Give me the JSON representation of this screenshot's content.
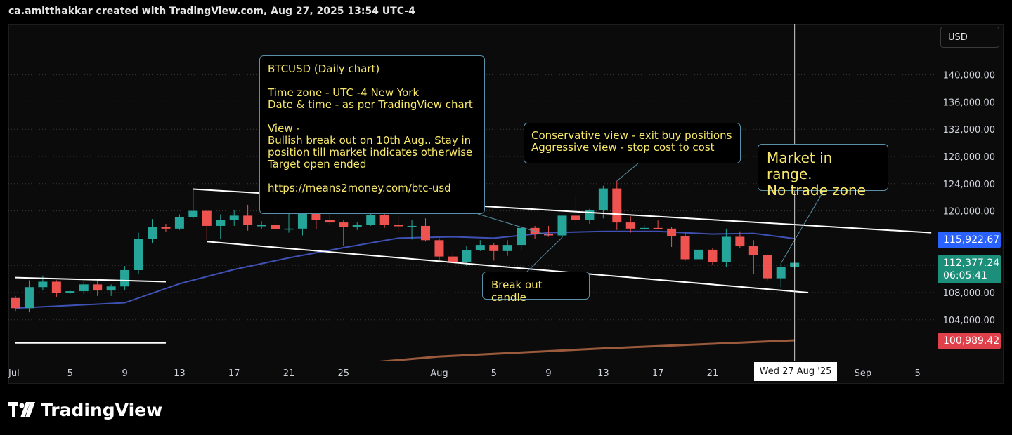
{
  "header": {
    "text": "ca.amitthakkar created with TradingView.com, Aug 27, 2025 13:54 UTC-4"
  },
  "currency_button": "USD",
  "notes": {
    "main": "BTCUSD (Daily chart)\n\nTime zone - UTC -4 New York\nDate & time - as per TradingView chart\n\nView -\nBullish break out on 10th Aug.. Stay in\nposition till market indicates otherwise\nTarget open ended\n\nhttps://means2money.com/btc-usd",
    "break_out": "Break out candle",
    "conservative": "Conservative view - exit buy positions\nAggressive view - stop cost to cost",
    "range": "Market in range.\nNo trade zone"
  },
  "price_tags": {
    "ma": "115,922.67",
    "last": "112,377.24",
    "countdown": "06:05:41",
    "lower": "100,989.42"
  },
  "crosshair_date": "Wed 27 Aug '25",
  "brand": "TradingView",
  "colors": {
    "up": "#26a69a",
    "down": "#ef5350",
    "ma": "#3f51b5",
    "trendline": "#ffffff",
    "note_text": "#f7e86a",
    "note_border": "#5a8fa8"
  },
  "chart_data": {
    "type": "candlestick",
    "title": "",
    "symbol": "BTCUSD",
    "timeframe": "Daily",
    "y_ticks": [
      104000,
      108000,
      112000,
      120000,
      124000,
      128000,
      132000,
      136000,
      140000
    ],
    "y_tick_labels": [
      "104,000.00",
      "108,000.00",
      "",
      "120,000.00",
      "124,000.00",
      "128,000.00",
      "132,000.00",
      "136,000.00",
      "140,000.00"
    ],
    "ylim": [
      96000,
      144000
    ],
    "x_ticks": [
      {
        "label": "Jul",
        "date": "2025-07-01"
      },
      {
        "label": "5",
        "date": "2025-07-05"
      },
      {
        "label": "9",
        "date": "2025-07-09"
      },
      {
        "label": "13",
        "date": "2025-07-13"
      },
      {
        "label": "17",
        "date": "2025-07-17"
      },
      {
        "label": "21",
        "date": "2025-07-21"
      },
      {
        "label": "25",
        "date": "2025-07-25"
      },
      {
        "label": "Aug",
        "date": "2025-08-01"
      },
      {
        "label": "5",
        "date": "2025-08-05"
      },
      {
        "label": "9",
        "date": "2025-08-09"
      },
      {
        "label": "13",
        "date": "2025-08-13"
      },
      {
        "label": "17",
        "date": "2025-08-17"
      },
      {
        "label": "21",
        "date": "2025-08-21"
      },
      {
        "label": "Sep",
        "date": "2025-09-01"
      },
      {
        "label": "5",
        "date": "2025-09-05"
      }
    ],
    "candles": [
      {
        "date": "2025-07-01",
        "o": 107200,
        "h": 107500,
        "l": 105300,
        "c": 105700
      },
      {
        "date": "2025-07-02",
        "o": 105700,
        "h": 109800,
        "l": 105100,
        "c": 108800
      },
      {
        "date": "2025-07-03",
        "o": 108800,
        "h": 110500,
        "l": 108300,
        "c": 109600
      },
      {
        "date": "2025-07-04",
        "o": 109600,
        "h": 109800,
        "l": 107300,
        "c": 108000
      },
      {
        "date": "2025-07-05",
        "o": 108000,
        "h": 108400,
        "l": 107800,
        "c": 108200
      },
      {
        "date": "2025-07-06",
        "o": 108200,
        "h": 109700,
        "l": 107800,
        "c": 109200
      },
      {
        "date": "2025-07-07",
        "o": 109200,
        "h": 109700,
        "l": 107500,
        "c": 108300
      },
      {
        "date": "2025-07-08",
        "o": 108300,
        "h": 109200,
        "l": 107500,
        "c": 108900
      },
      {
        "date": "2025-07-09",
        "o": 108900,
        "h": 111900,
        "l": 108300,
        "c": 111300
      },
      {
        "date": "2025-07-10",
        "o": 111300,
        "h": 116800,
        "l": 110700,
        "c": 115900
      },
      {
        "date": "2025-07-11",
        "o": 115900,
        "h": 118800,
        "l": 115300,
        "c": 117600
      },
      {
        "date": "2025-07-12",
        "o": 117600,
        "h": 118100,
        "l": 116900,
        "c": 117400
      },
      {
        "date": "2025-07-13",
        "o": 117400,
        "h": 119500,
        "l": 117200,
        "c": 119100
      },
      {
        "date": "2025-07-14",
        "o": 119100,
        "h": 123200,
        "l": 118900,
        "c": 120000
      },
      {
        "date": "2025-07-15",
        "o": 120000,
        "h": 120200,
        "l": 115700,
        "c": 117800
      },
      {
        "date": "2025-07-16",
        "o": 117800,
        "h": 119500,
        "l": 115900,
        "c": 118700
      },
      {
        "date": "2025-07-17",
        "o": 118700,
        "h": 120100,
        "l": 117800,
        "c": 119300
      },
      {
        "date": "2025-07-18",
        "o": 119300,
        "h": 120900,
        "l": 117100,
        "c": 117900
      },
      {
        "date": "2025-07-19",
        "o": 117900,
        "h": 118500,
        "l": 117300,
        "c": 117900
      },
      {
        "date": "2025-07-20",
        "o": 117900,
        "h": 119000,
        "l": 116500,
        "c": 117300
      },
      {
        "date": "2025-07-21",
        "o": 117300,
        "h": 119700,
        "l": 116800,
        "c": 117400
      },
      {
        "date": "2025-07-22",
        "o": 117400,
        "h": 120200,
        "l": 116400,
        "c": 119900
      },
      {
        "date": "2025-07-23",
        "o": 119900,
        "h": 120100,
        "l": 117300,
        "c": 118700
      },
      {
        "date": "2025-07-24",
        "o": 118700,
        "h": 119600,
        "l": 117900,
        "c": 118300
      },
      {
        "date": "2025-07-25",
        "o": 118300,
        "h": 118600,
        "l": 114800,
        "c": 117600
      },
      {
        "date": "2025-07-26",
        "o": 117600,
        "h": 118300,
        "l": 117200,
        "c": 117900
      },
      {
        "date": "2025-07-27",
        "o": 117900,
        "h": 119800,
        "l": 117800,
        "c": 119400
      },
      {
        "date": "2025-07-28",
        "o": 119400,
        "h": 119800,
        "l": 117500,
        "c": 117900
      },
      {
        "date": "2025-07-29",
        "o": 117900,
        "h": 119200,
        "l": 116900,
        "c": 117800
      },
      {
        "date": "2025-07-30",
        "o": 117800,
        "h": 118700,
        "l": 115800,
        "c": 117800
      },
      {
        "date": "2025-07-31",
        "o": 117800,
        "h": 118900,
        "l": 115500,
        "c": 115700
      },
      {
        "date": "2025-08-01",
        "o": 115700,
        "h": 116000,
        "l": 112700,
        "c": 113300
      },
      {
        "date": "2025-08-02",
        "o": 113300,
        "h": 114000,
        "l": 112000,
        "c": 112500
      },
      {
        "date": "2025-08-03",
        "o": 112500,
        "h": 114800,
        "l": 111900,
        "c": 114200
      },
      {
        "date": "2025-08-04",
        "o": 114200,
        "h": 115700,
        "l": 114100,
        "c": 115000
      },
      {
        "date": "2025-08-05",
        "o": 115000,
        "h": 115300,
        "l": 112700,
        "c": 114100
      },
      {
        "date": "2025-08-06",
        "o": 114100,
        "h": 115700,
        "l": 113400,
        "c": 115000
      },
      {
        "date": "2025-08-07",
        "o": 115000,
        "h": 117600,
        "l": 114300,
        "c": 117500
      },
      {
        "date": "2025-08-08",
        "o": 117500,
        "h": 117800,
        "l": 115900,
        "c": 116600
      },
      {
        "date": "2025-08-09",
        "o": 116600,
        "h": 117800,
        "l": 116200,
        "c": 116400
      },
      {
        "date": "2025-08-10",
        "o": 116400,
        "h": 119300,
        "l": 116100,
        "c": 119300
      },
      {
        "date": "2025-08-11",
        "o": 119300,
        "h": 122300,
        "l": 118100,
        "c": 118700
      },
      {
        "date": "2025-08-12",
        "o": 118700,
        "h": 120300,
        "l": 118100,
        "c": 120100
      },
      {
        "date": "2025-08-13",
        "o": 120100,
        "h": 123700,
        "l": 118900,
        "c": 123300
      },
      {
        "date": "2025-08-14",
        "o": 123300,
        "h": 124400,
        "l": 117200,
        "c": 118300
      },
      {
        "date": "2025-08-15",
        "o": 118300,
        "h": 119200,
        "l": 116800,
        "c": 117400
      },
      {
        "date": "2025-08-16",
        "o": 117400,
        "h": 117900,
        "l": 117200,
        "c": 117500
      },
      {
        "date": "2025-08-17",
        "o": 117500,
        "h": 118600,
        "l": 117300,
        "c": 117400
      },
      {
        "date": "2025-08-18",
        "o": 117400,
        "h": 117600,
        "l": 114700,
        "c": 116300
      },
      {
        "date": "2025-08-19",
        "o": 116300,
        "h": 116800,
        "l": 112700,
        "c": 112900
      },
      {
        "date": "2025-08-20",
        "o": 112900,
        "h": 114600,
        "l": 112400,
        "c": 114300
      },
      {
        "date": "2025-08-21",
        "o": 114300,
        "h": 114600,
        "l": 112000,
        "c": 112500
      },
      {
        "date": "2025-08-22",
        "o": 112500,
        "h": 117400,
        "l": 111700,
        "c": 116200
      },
      {
        "date": "2025-08-23",
        "o": 116200,
        "h": 117000,
        "l": 114600,
        "c": 114800
      },
      {
        "date": "2025-08-24",
        "o": 114800,
        "h": 115700,
        "l": 110700,
        "c": 113500
      },
      {
        "date": "2025-08-25",
        "o": 113500,
        "h": 113600,
        "l": 109800,
        "c": 110100
      },
      {
        "date": "2025-08-26",
        "o": 110100,
        "h": 112300,
        "l": 108800,
        "c": 111800
      },
      {
        "date": "2025-08-27",
        "o": 111800,
        "h": 112500,
        "l": 111500,
        "c": 112377
      }
    ],
    "moving_average": [
      {
        "date": "2025-07-01",
        "v": 105700
      },
      {
        "date": "2025-07-09",
        "v": 106500
      },
      {
        "date": "2025-07-13",
        "v": 109300
      },
      {
        "date": "2025-07-17",
        "v": 111400
      },
      {
        "date": "2025-07-21",
        "v": 113100
      },
      {
        "date": "2025-07-25",
        "v": 114600
      },
      {
        "date": "2025-07-29",
        "v": 116000
      },
      {
        "date": "2025-08-02",
        "v": 116200
      },
      {
        "date": "2025-08-05",
        "v": 116000
      },
      {
        "date": "2025-08-09",
        "v": 116800
      },
      {
        "date": "2025-08-13",
        "v": 117000
      },
      {
        "date": "2025-08-17",
        "v": 117000
      },
      {
        "date": "2025-08-21",
        "v": 116600
      },
      {
        "date": "2025-08-24",
        "v": 116700
      },
      {
        "date": "2025-08-27",
        "v": 115922.67
      }
    ],
    "lower_ma": [
      {
        "date": "2025-07-21",
        "v": 96700
      },
      {
        "date": "2025-08-01",
        "v": 98600
      },
      {
        "date": "2025-08-13",
        "v": 99800
      },
      {
        "date": "2025-08-27",
        "v": 100989.42
      }
    ],
    "trendlines": [
      {
        "start": {
          "date": "2025-07-14",
          "price": 123200
        },
        "end": {
          "date": "2025-09-06",
          "price": 116800
        }
      },
      {
        "start": {
          "date": "2025-07-15",
          "price": 115500
        },
        "end": {
          "date": "2025-08-28",
          "price": 108000
        }
      },
      {
        "start": {
          "date": "2025-07-01",
          "price": 110200
        },
        "end": {
          "date": "2025-07-12",
          "price": 109600
        }
      },
      {
        "start": {
          "date": "2025-07-01",
          "price": 100600
        },
        "end": {
          "date": "2025-07-12",
          "price": 100600
        }
      }
    ],
    "crosshair": {
      "date": "2025-08-27"
    },
    "last_price": 112377.24,
    "grid": true
  }
}
